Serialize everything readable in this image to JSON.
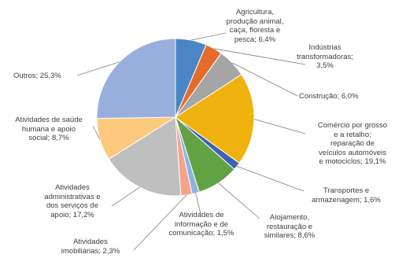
{
  "chart_data": {
    "type": "pie",
    "title": "",
    "slices": [
      {
        "label": "Agricultura, produção animal, caça, floresta e pesca",
        "value": 6.4,
        "label_text": "Agricultura,\nprodução animal,\ncaça, floresta e\npesca; 6,4%",
        "color": "#4a86c5"
      },
      {
        "label": "Indústrias transformadoras",
        "value": 3.5,
        "label_text": "Indústrias\ntransformadoras;\n3,5%",
        "color": "#e46c2a"
      },
      {
        "label": "Construção",
        "value": 6.0,
        "label_text": "Construção; 6,0%",
        "color": "#a5a5a5"
      },
      {
        "label": "Comércio por grosso e a retalho; reparação de veículos automóveis e motociclos",
        "value": 19.1,
        "label_text": "Comércio por grosso\ne a retalho;\nreparação de\nveículos automóveis\ne motociclos; 19,1%",
        "color": "#f0b20f"
      },
      {
        "label": "Transportes e armazenagem",
        "value": 1.6,
        "label_text": "Transportes e\narmazenagem; 1,6%",
        "color": "#3f60b5"
      },
      {
        "label": "Alojamento, restauração e similares",
        "value": 8.6,
        "label_text": "Alojamento,\nrestauração e\nsimilares; 8,6%",
        "color": "#62a245"
      },
      {
        "label": "Atividades de informação e de comunicação",
        "value": 1.5,
        "label_text": "Atividades de\ninformação e de\ncomunicação; 1,5%",
        "color": "#8cb4e0"
      },
      {
        "label": "Atividades imobiliárias",
        "value": 2.3,
        "label_text": "Atividades\nimobiliárias; 2,3%",
        "color": "#f2a58c"
      },
      {
        "label": "Atividades administrativas e dos serviços de apoio",
        "value": 17.2,
        "label_text": "Atividades\nadministrativas e\ndos serviços de\napoio; 17,2%",
        "color": "#bfbfbf"
      },
      {
        "label": "Atividades de saúde humana e apoio social",
        "value": 8.7,
        "label_text": "Atividades de saúde\nhumana e apoio\nsocial; 8,7%",
        "color": "#fdc97c"
      },
      {
        "label": "Outros",
        "value": 25.3,
        "label_text": "Outros; 25,3%",
        "color": "#98aedd"
      }
    ],
    "start_angle_deg": 0,
    "direction": "clockwise"
  }
}
